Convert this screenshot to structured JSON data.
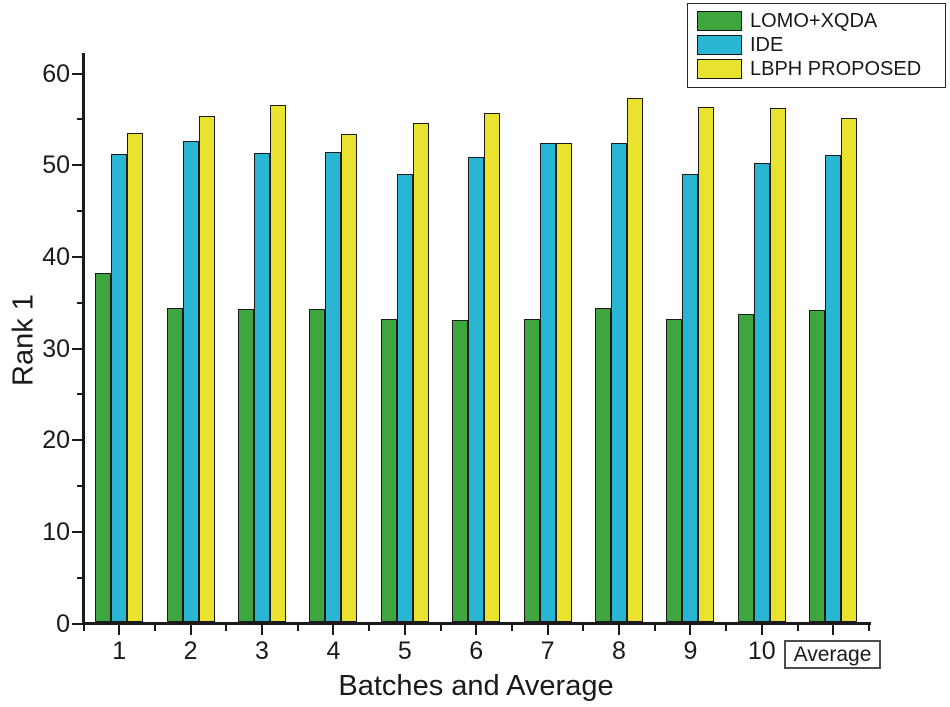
{
  "chart_data": {
    "type": "bar",
    "title": "",
    "xlabel": "Batches and Average",
    "ylabel": "Rank 1",
    "categories": [
      "1",
      "2",
      "3",
      "4",
      "5",
      "6",
      "7",
      "8",
      "9",
      "10",
      "Average"
    ],
    "last_category_boxed": true,
    "series": [
      {
        "name": "LOMO+XQDA",
        "color": "#3FA53F",
        "values": [
          38.1,
          34.3,
          34.1,
          34.1,
          33.0,
          32.9,
          33.1,
          34.2,
          33.0,
          33.6,
          34.0
        ]
      },
      {
        "name": "IDE",
        "color": "#29B6D2",
        "values": [
          51.1,
          52.5,
          51.2,
          51.3,
          48.9,
          50.7,
          52.2,
          52.2,
          48.9,
          50.1,
          50.9
        ]
      },
      {
        "name": "LBPH PROPOSED",
        "color": "#E9E22E",
        "values": [
          53.3,
          55.2,
          56.4,
          53.2,
          54.4,
          55.5,
          52.3,
          57.2,
          56.2,
          56.1,
          55.0
        ]
      }
    ],
    "ylim": [
      0,
      62
    ],
    "y_major_ticks": [
      0,
      10,
      20,
      30,
      40,
      50,
      60
    ],
    "y_minor_ticks": [
      5,
      15,
      25,
      35,
      45,
      55
    ],
    "legend_position": "top-right",
    "grid": false,
    "bar_border_color": "#1a1a1a",
    "axis_color": "#1a1a1a",
    "background_color": "#ffffff"
  }
}
